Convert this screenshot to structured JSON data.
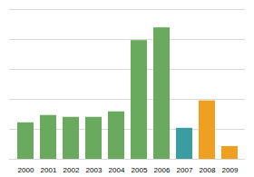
{
  "chart_data": {
    "type": "bar",
    "categories": [
      "2000",
      "2001",
      "2002",
      "2003",
      "2004",
      "2005",
      "2006",
      "2007",
      "2008",
      "2009"
    ],
    "values": [
      20,
      24,
      23,
      23,
      26,
      65,
      72,
      17,
      32,
      7
    ],
    "colors": [
      "#6aaa5e",
      "#6aaa5e",
      "#6aaa5e",
      "#6aaa5e",
      "#6aaa5e",
      "#6aaa5e",
      "#6aaa5e",
      "#3b9da0",
      "#f0a020",
      "#f0a020"
    ],
    "ylim": [
      0,
      82
    ],
    "yticks": [
      0,
      16.4,
      32.8,
      49.2,
      65.6,
      82
    ],
    "grid": true,
    "tick_labels": "x"
  }
}
